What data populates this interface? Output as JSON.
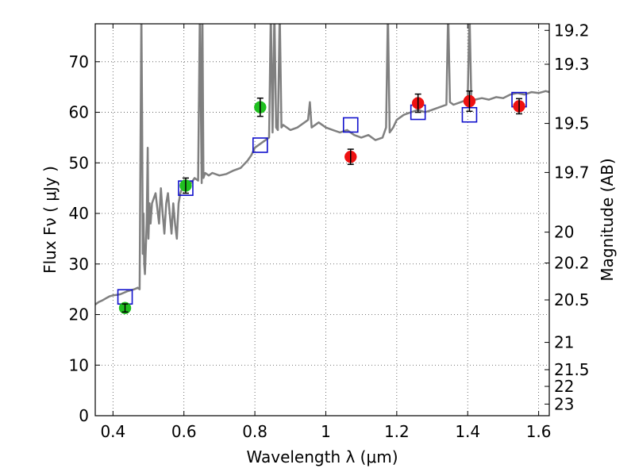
{
  "chart_data": {
    "type": "scatter",
    "title": "",
    "xlabel": "Wavelength  λ (μm)",
    "ylabel": "Flux  Fν  ( μJy )",
    "y2label": "Magnitude (AB)",
    "xlim": [
      0.35,
      1.63
    ],
    "ylim": [
      0,
      77.5
    ],
    "xticks": [
      0.4,
      0.6,
      0.8,
      1.0,
      1.2,
      1.4,
      1.6
    ],
    "xtick_labels": [
      "0.4",
      "0.6",
      "0.8",
      "1",
      "1.2",
      "1.4",
      "1.6"
    ],
    "yticks": [
      0,
      10,
      20,
      30,
      40,
      50,
      60,
      70
    ],
    "ytick_labels": [
      "0",
      "10",
      "20",
      "30",
      "40",
      "50",
      "60",
      "70"
    ],
    "y2ticks": [
      {
        "label": "19.2",
        "flux": 76.2
      },
      {
        "label": "19.3",
        "flux": 69.5
      },
      {
        "label": "19.5",
        "flux": 57.8
      },
      {
        "label": "19.7",
        "flux": 48.1
      },
      {
        "label": "20",
        "flux": 36.3
      },
      {
        "label": "20.2",
        "flux": 30.2
      },
      {
        "label": "20.5",
        "flux": 22.9
      },
      {
        "label": "21",
        "flux": 14.5
      },
      {
        "label": "21.5",
        "flux": 9.1
      },
      {
        "label": "22",
        "flux": 5.8
      },
      {
        "label": "23",
        "flux": 2.3
      }
    ],
    "grid": true,
    "colors": {
      "model": "#808080",
      "green": "#1fbf1f",
      "red": "#ee1111",
      "box": "#1010cc",
      "errorbar": "#000000"
    },
    "series": [
      {
        "kind": "line",
        "x": [
          0.35,
          0.36,
          0.37,
          0.38,
          0.39,
          0.4,
          0.41,
          0.42,
          0.43,
          0.44,
          0.45,
          0.46,
          0.47,
          0.475,
          0.48,
          0.482,
          0.484,
          0.486,
          0.488,
          0.49,
          0.495,
          0.498,
          0.5,
          0.503,
          0.506,
          0.51,
          0.52,
          0.525,
          0.53,
          0.535,
          0.54,
          0.545,
          0.55,
          0.555,
          0.56,
          0.565,
          0.57,
          0.575,
          0.58,
          0.585,
          0.59,
          0.595,
          0.6,
          0.61,
          0.62,
          0.63,
          0.64,
          0.645,
          0.65,
          0.652,
          0.655,
          0.66,
          0.67,
          0.68,
          0.7,
          0.72,
          0.74,
          0.76,
          0.78,
          0.79,
          0.8,
          0.82,
          0.84,
          0.845,
          0.85,
          0.855,
          0.86,
          0.865,
          0.87,
          0.875,
          0.88,
          0.9,
          0.92,
          0.94,
          0.95,
          0.955,
          0.96,
          0.98,
          1.0,
          1.02,
          1.04,
          1.06,
          1.08,
          1.1,
          1.12,
          1.14,
          1.16,
          1.17,
          1.175,
          1.18,
          1.19,
          1.2,
          1.22,
          1.24,
          1.26,
          1.28,
          1.3,
          1.32,
          1.34,
          1.345,
          1.35,
          1.36,
          1.38,
          1.4,
          1.405,
          1.41,
          1.42,
          1.44,
          1.46,
          1.48,
          1.5,
          1.52,
          1.54,
          1.56,
          1.58,
          1.6,
          1.62,
          1.63
        ],
        "y": [
          22.0,
          22.5,
          22.8,
          23.2,
          23.6,
          23.8,
          23.9,
          24.0,
          24.3,
          24.6,
          24.8,
          25.0,
          25.3,
          25.0,
          80.0,
          60.0,
          32.0,
          40.0,
          30.0,
          28.0,
          38.0,
          53.0,
          35.0,
          42.0,
          38.0,
          42.0,
          44.0,
          41.0,
          38.0,
          45.0,
          40.0,
          36.0,
          42.0,
          44.0,
          40.0,
          36.0,
          42.0,
          38.0,
          35.0,
          42.0,
          44.0,
          45.0,
          45.5,
          45.8,
          46.0,
          47.0,
          46.5,
          80.0,
          46.0,
          80.0,
          47.0,
          48.0,
          47.5,
          48.0,
          47.5,
          47.8,
          48.5,
          49.0,
          50.5,
          51.5,
          53.0,
          54.0,
          55.0,
          80.0,
          56.0,
          80.0,
          57.0,
          56.5,
          80.0,
          57.0,
          57.5,
          56.5,
          57.0,
          58.0,
          58.5,
          62.0,
          57.0,
          58.0,
          57.0,
          56.5,
          56.0,
          56.5,
          55.5,
          55.0,
          55.5,
          54.5,
          55.0,
          57.0,
          80.0,
          56.0,
          57.0,
          58.5,
          59.5,
          60.0,
          60.5,
          60.0,
          60.5,
          61.0,
          61.5,
          80.0,
          62.0,
          61.5,
          62.0,
          62.5,
          80.0,
          63.0,
          62.5,
          62.8,
          62.5,
          63.0,
          62.8,
          63.5,
          63.8,
          63.5,
          64.0,
          63.8,
          64.2,
          64.0
        ]
      },
      {
        "kind": "boxes",
        "x": [
          0.434,
          0.605,
          0.815,
          1.07,
          1.26,
          1.405,
          1.545
        ],
        "y": [
          23.5,
          45.0,
          53.5,
          57.5,
          60.0,
          59.5,
          62.5
        ]
      },
      {
        "kind": "points",
        "color": "green",
        "x": [
          0.434,
          0.605,
          0.815
        ],
        "y": [
          21.3,
          45.5,
          61.0
        ],
        "err": [
          0.8,
          1.5,
          1.8
        ]
      },
      {
        "kind": "points",
        "color": "red",
        "x": [
          1.07,
          1.26,
          1.405,
          1.545
        ],
        "y": [
          51.2,
          61.8,
          62.2,
          61.2
        ],
        "err": [
          1.5,
          1.8,
          2.0,
          1.5
        ]
      }
    ]
  }
}
